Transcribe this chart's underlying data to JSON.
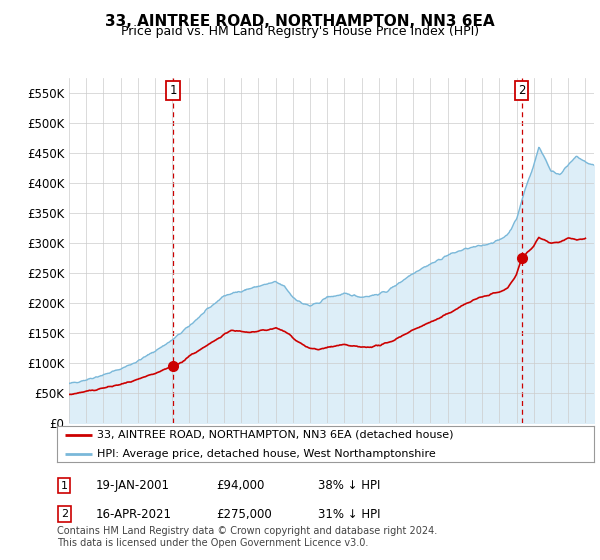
{
  "title": "33, AINTREE ROAD, NORTHAMPTON, NN3 6EA",
  "subtitle": "Price paid vs. HM Land Registry's House Price Index (HPI)",
  "legend_line1": "33, AINTREE ROAD, NORTHAMPTON, NN3 6EA (detached house)",
  "legend_line2": "HPI: Average price, detached house, West Northamptonshire",
  "marker1_date": "19-JAN-2001",
  "marker1_price": 94000,
  "marker1_label": "38% ↓ HPI",
  "marker2_date": "16-APR-2021",
  "marker2_price": 275000,
  "marker2_label": "31% ↓ HPI",
  "footnote1": "Contains HM Land Registry data © Crown copyright and database right 2024.",
  "footnote2": "This data is licensed under the Open Government Licence v3.0.",
  "hpi_color": "#7ab8d9",
  "hpi_fill_color": "#ddeef8",
  "price_color": "#cc0000",
  "marker_edgecolor": "#cc0000",
  "background_color": "#ffffff",
  "grid_color": "#cccccc",
  "ylim": [
    0,
    575000
  ],
  "yticks": [
    0,
    50000,
    100000,
    150000,
    200000,
    250000,
    300000,
    350000,
    400000,
    450000,
    500000,
    550000
  ],
  "marker1_x": 2001.05,
  "marker2_x": 2021.29,
  "xmin": 1995,
  "xmax": 2025.5
}
